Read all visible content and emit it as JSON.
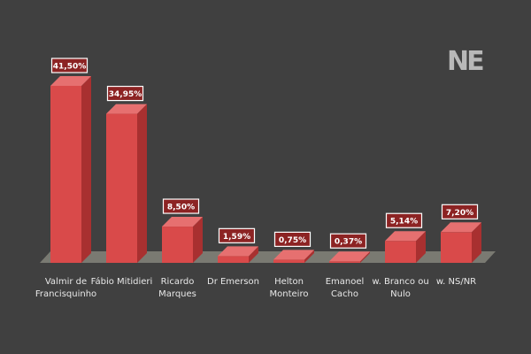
{
  "chart_data": {
    "type": "bar3d",
    "logo": "NE",
    "categories": [
      "Valmir de Francisquinho",
      "Fábio Mitidieri",
      "Ricardo Marques",
      "Dr Emerson",
      "Helton Monteiro",
      "Emanoel Cacho",
      "w. Branco ou Nulo",
      "w. NS/NR"
    ],
    "values": [
      41.5,
      34.95,
      8.5,
      1.59,
      0.75,
      0.37,
      5.14,
      7.2
    ],
    "value_labels": [
      "41,50%",
      "34,95%",
      "8,50%",
      "1,59%",
      "0,75%",
      "0,37%",
      "5,14%",
      "7,20%"
    ],
    "color": "#d94a4a"
  }
}
